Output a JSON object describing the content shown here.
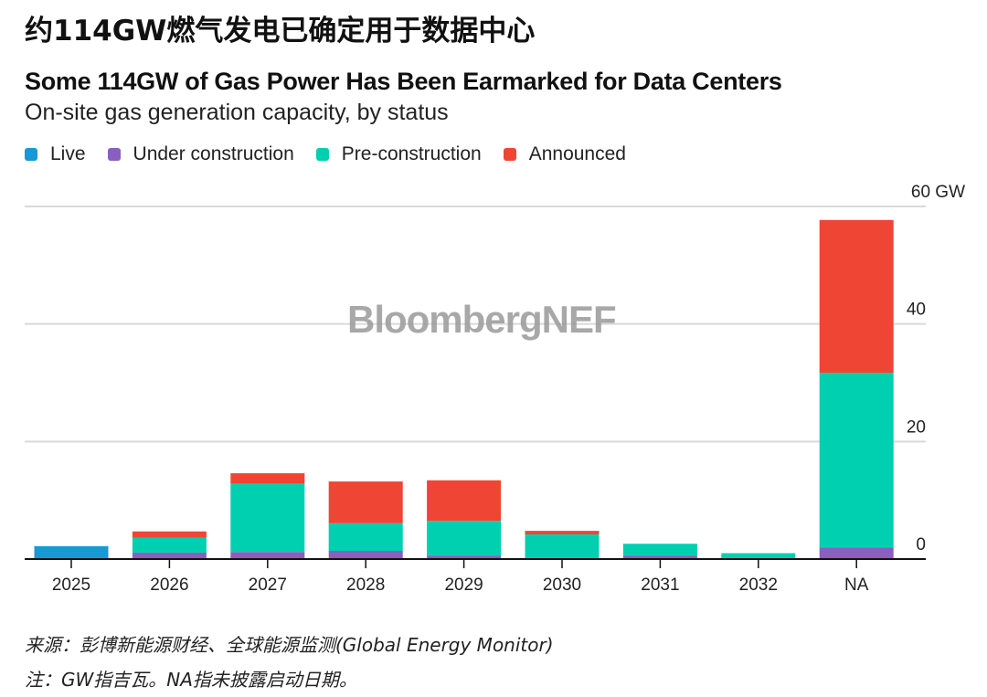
{
  "cn_title": "约114GW燃气发电已确定用于数据中心",
  "watermark": "BloombergNEF",
  "footer": {
    "source": "来源：彭博新能源财经、全球能源监测(Global Energy Monitor)",
    "note": "注：GW指吉瓦。NA指未披露启动日期。"
  },
  "chart_data": {
    "type": "bar",
    "stacked": true,
    "title": "Some 114GW of Gas Power Has Been Earmarked for Data Centers",
    "subtitle": "On-site gas generation capacity, by status",
    "xlabel": "",
    "ylabel": "GW",
    "ylim": [
      0,
      60
    ],
    "yticks": [
      0,
      20,
      40,
      60
    ],
    "ytick_labels": [
      "0",
      "20",
      "40",
      "60 GW"
    ],
    "grid": true,
    "legend_position": "top-left",
    "categories": [
      "2025",
      "2026",
      "2027",
      "2028",
      "2029",
      "2030",
      "2031",
      "2032",
      "NA"
    ],
    "series": [
      {
        "name": "Live",
        "color": "#1a97d5",
        "values": [
          2.2,
          0,
          0,
          0,
          0,
          0,
          0,
          0,
          0
        ]
      },
      {
        "name": "Under construction",
        "color": "#8a5fbf",
        "values": [
          0,
          1.1,
          1.2,
          1.4,
          0.6,
          0,
          0.6,
          0,
          2.0
        ]
      },
      {
        "name": "Pre-construction",
        "color": "#00d0b0",
        "values": [
          0,
          2.5,
          11.7,
          4.7,
          5.9,
          4.2,
          2.0,
          1.0,
          29.7
        ]
      },
      {
        "name": "Announced",
        "color": "#ef4535",
        "values": [
          0,
          1.1,
          1.7,
          7.1,
          6.9,
          0.6,
          0,
          0,
          26.0
        ]
      }
    ]
  }
}
